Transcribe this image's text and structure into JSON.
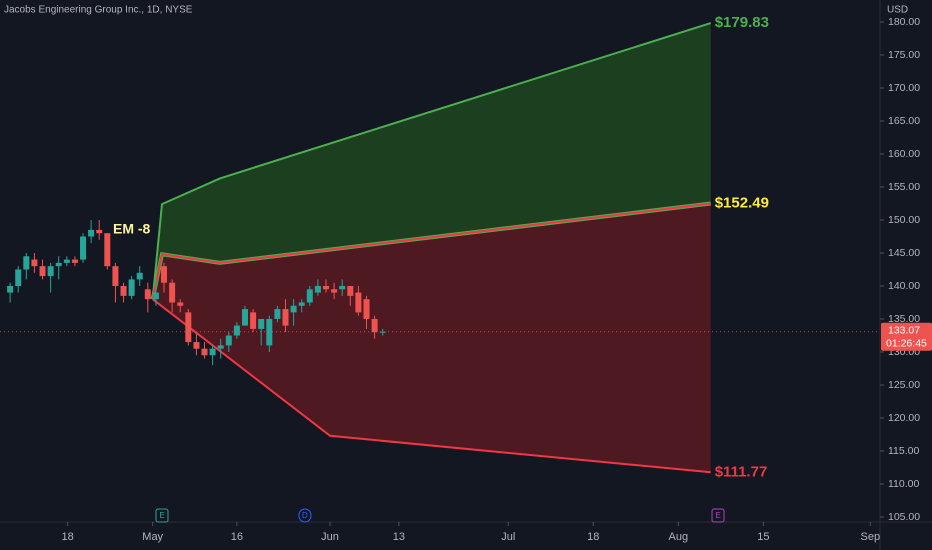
{
  "chart_data": {
    "type": "candlestick",
    "title": "Jacobs Engineering Group Inc., 1D, NYSE",
    "currency": "USD",
    "annotation": "EM -8",
    "up_color": "#26a69a",
    "down_color": "#ef5350",
    "x": [
      1,
      2,
      3,
      4,
      5,
      6,
      7,
      8,
      9,
      10,
      11,
      12,
      13,
      14,
      15,
      16,
      17,
      18,
      19,
      20,
      21,
      22,
      23,
      24,
      25,
      26,
      27,
      28,
      29,
      30,
      31,
      32,
      33,
      34,
      35,
      36,
      37,
      38,
      39,
      40,
      41,
      42,
      43,
      44,
      45,
      46,
      47
    ],
    "open": [
      139,
      140,
      142.5,
      144,
      143,
      141.5,
      143,
      143.5,
      144,
      144,
      147.5,
      148.5,
      148,
      143,
      140,
      138.5,
      141,
      139.5,
      138,
      143,
      140.5,
      137.5,
      136,
      131.5,
      130.5,
      129.5,
      130.5,
      131,
      132.5,
      134,
      136,
      133.5,
      131,
      135,
      136.5,
      136,
      137,
      137.5,
      139,
      140,
      139.5,
      139.5,
      140,
      139,
      138,
      135,
      133
    ],
    "high": [
      140.5,
      143,
      145,
      145,
      144,
      143.5,
      144.5,
      144.5,
      144.5,
      148,
      150,
      150,
      148,
      143.5,
      140.5,
      141.5,
      143,
      140.5,
      141,
      143.5,
      141,
      138,
      136.5,
      133,
      131.5,
      131,
      132,
      133,
      134.5,
      137,
      136.5,
      135,
      135.5,
      137,
      138,
      138,
      138,
      140,
      141,
      141,
      140.5,
      141,
      140,
      140,
      138.5,
      135.5,
      133.5
    ],
    "low": [
      137.5,
      139,
      141,
      142,
      141,
      139,
      141,
      143,
      143,
      143.5,
      146.5,
      147,
      142.5,
      137.5,
      137.5,
      138,
      140,
      136,
      137,
      139,
      136,
      136,
      131,
      129.5,
      129,
      128,
      129,
      130,
      132,
      134,
      133,
      131,
      130,
      134.5,
      133,
      134,
      136,
      137,
      138.5,
      139,
      138,
      138.5,
      137,
      135.5,
      133.5,
      132,
      132.5
    ],
    "close": [
      140,
      142.5,
      144.5,
      143,
      141.5,
      143,
      143.5,
      144,
      143.5,
      147.5,
      148.5,
      148,
      143,
      140,
      138.5,
      141,
      142,
      138,
      139,
      140.5,
      137.5,
      137,
      131.5,
      130.5,
      129.5,
      130.5,
      131,
      132.5,
      134,
      136.5,
      133.5,
      135,
      135,
      136.5,
      134,
      137,
      137.5,
      139.5,
      140,
      139.5,
      139,
      140,
      138.5,
      136,
      135,
      133,
      133.07
    ],
    "xlim": [
      -0.25,
      108.4
    ],
    "xticks": [
      {
        "value": 8.1,
        "label": "18"
      },
      {
        "value": 18.6,
        "label": "May"
      },
      {
        "value": 29,
        "label": "16"
      },
      {
        "value": 40.5,
        "label": "Jun"
      },
      {
        "value": 49,
        "label": "13"
      },
      {
        "value": 62.5,
        "label": "Jul"
      },
      {
        "value": 73,
        "label": "18"
      },
      {
        "value": 83.5,
        "label": "Aug"
      },
      {
        "value": 94,
        "label": "15"
      },
      {
        "value": 107.2,
        "label": "Sep"
      }
    ],
    "ylim": [
      104.24,
      183.33
    ],
    "yticks": [
      {
        "value": 105,
        "label": "105.00"
      },
      {
        "value": 110,
        "label": "110.00"
      },
      {
        "value": 115,
        "label": "115.00"
      },
      {
        "value": 120,
        "label": "120.00"
      },
      {
        "value": 125,
        "label": "125.00"
      },
      {
        "value": 130,
        "label": "130.00"
      },
      {
        "value": 135,
        "label": "135.00"
      },
      {
        "value": 140,
        "label": "140.00"
      },
      {
        "value": 145,
        "label": "145.00"
      },
      {
        "value": 150,
        "label": "150.00"
      },
      {
        "value": 155,
        "label": "155.00"
      },
      {
        "value": 160,
        "label": "160.00"
      },
      {
        "value": 165,
        "label": "165.00"
      },
      {
        "value": 170,
        "label": "170.00"
      },
      {
        "value": 175,
        "label": "175.00"
      },
      {
        "value": 180,
        "label": "180.00"
      }
    ],
    "last_price": 133.07,
    "countdown": "01:26:45",
    "projection": {
      "upper": {
        "x": [
          18.6,
          19.75,
          26.9,
          87.5
        ],
        "values": [
          138,
          152.4,
          156.3,
          179.83
        ],
        "color": "#4caf50",
        "end_label": {
          "value": 179.83,
          "label": "$179.83"
        }
      },
      "middle": {
        "x": [
          18.6,
          19.75,
          26.9,
          87.5
        ],
        "values": [
          138,
          144.8,
          143.5,
          152.49
        ],
        "color": "#ffeb3b",
        "end_label": {
          "value": 152.49,
          "label": "$152.49"
        }
      },
      "lower": {
        "x": [
          18.6,
          40.5,
          87.5
        ],
        "values": [
          138,
          117.3,
          111.77
        ],
        "color": "#f23645",
        "end_label": {
          "value": 111.77,
          "label": "$111.77"
        }
      },
      "upper_fill": "#1e4620",
      "lower_fill": "#5a1a22"
    },
    "events": [
      {
        "x": 19.75,
        "label": "E"
      },
      {
        "x": 37.4,
        "label": "D"
      },
      {
        "x": 88.4,
        "label": "E"
      }
    ]
  }
}
